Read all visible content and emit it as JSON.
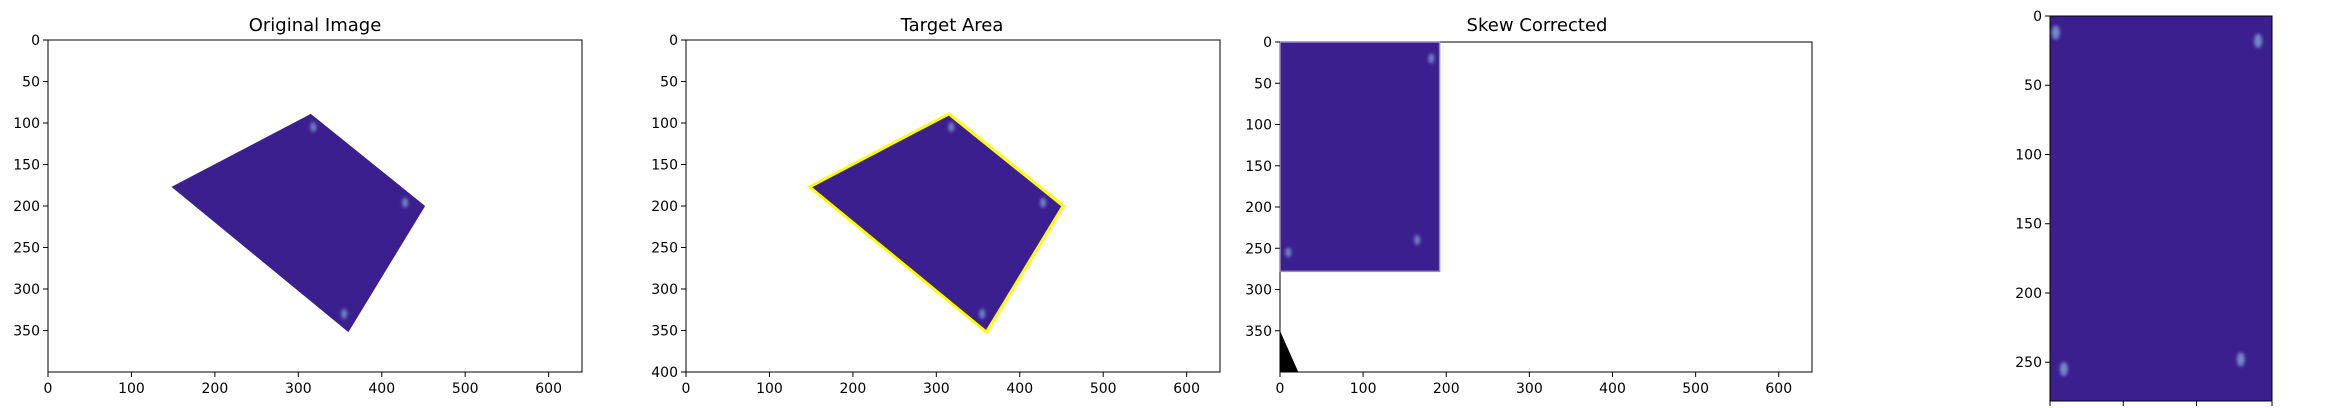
{
  "colors": {
    "fill": "#3b1f8f",
    "outline": "#ffff00",
    "speckle": "#7f9bd6",
    "black_wedge": "#000000"
  },
  "panels": [
    {
      "title": "Original Image",
      "x_ticks": [
        "0",
        "100",
        "200",
        "300",
        "400",
        "500",
        "600"
      ],
      "y_ticks": [
        "0",
        "50",
        "100",
        "150",
        "200",
        "250",
        "300",
        "350"
      ],
      "xlim": [
        0,
        640
      ],
      "ylim": [
        0,
        400
      ],
      "quad": [
        [
          315,
          89
        ],
        [
          452,
          200
        ],
        [
          360,
          352
        ],
        [
          148,
          177
        ]
      ]
    },
    {
      "title": "Target Area",
      "x_ticks": [
        "0",
        "100",
        "200",
        "300",
        "400",
        "500",
        "600"
      ],
      "y_ticks": [
        "0",
        "50",
        "100",
        "150",
        "200",
        "250",
        "300",
        "350",
        "400"
      ],
      "xlim": [
        0,
        640
      ],
      "ylim": [
        0,
        400
      ],
      "quad": [
        [
          315,
          89
        ],
        [
          452,
          200
        ],
        [
          360,
          352
        ],
        [
          148,
          177
        ]
      ]
    },
    {
      "title": "Skew Corrected",
      "x_ticks": [
        "0",
        "100",
        "200",
        "300",
        "400",
        "500",
        "600"
      ],
      "y_ticks": [
        "0",
        "50",
        "100",
        "150",
        "200",
        "250",
        "300",
        "350"
      ],
      "xlim": [
        0,
        640
      ],
      "ylim": [
        0,
        400
      ],
      "rect": [
        [
          0,
          0
        ],
        [
          192,
          278
        ]
      ],
      "wedge": [
        [
          0,
          350
        ],
        [
          22,
          400
        ],
        [
          0,
          400
        ]
      ]
    },
    {
      "title": "",
      "x_ticks": [],
      "y_ticks": [
        "0",
        "50",
        "100",
        "150",
        "200",
        "250"
      ],
      "xlim": [
        0,
        192
      ],
      "ylim": [
        0,
        278
      ]
    }
  ]
}
